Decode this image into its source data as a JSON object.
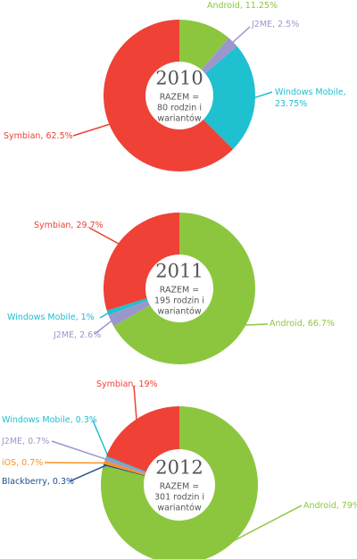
{
  "chart_data": [
    {
      "type": "pie",
      "title": "2010",
      "center_text": [
        "RAZEM =",
        "80 rodzin i",
        "wariantów"
      ],
      "values": [
        11.25,
        2.5,
        23.75,
        62.5
      ],
      "value_labels": [
        "Android, 11.25%",
        "J2ME, 2.5%",
        "Windows Mobile, 23.75%",
        "Symbian, 62.5%"
      ],
      "colors": [
        "#8cc63f",
        "#9a97cc",
        "#1fc0d0",
        "#ef4136"
      ]
    },
    {
      "type": "pie",
      "title": "2011",
      "center_text": [
        "RAZEM =",
        "195 rodzin i",
        "wariantów"
      ],
      "values": [
        66.7,
        2.6,
        1,
        29.7
      ],
      "value_labels": [
        "Android, 66.7%",
        "J2ME, 2.6%",
        "Windows Mobile, 1%",
        "Symbian, 29.7%"
      ],
      "colors": [
        "#8cc63f",
        "#9a97cc",
        "#1fc0d0",
        "#ef4136"
      ]
    },
    {
      "type": "pie",
      "title": "2012",
      "center_text": [
        "RAZEM =",
        "301 rodzin i",
        "wariantów"
      ],
      "values": [
        79,
        0.3,
        0.7,
        0.7,
        0.3,
        19
      ],
      "value_labels": [
        "Android, 79%",
        "Blackberry, 0.3%",
        "iOS, 0.7%",
        "J2ME, 0.7%",
        "Windows Mobile, 0.3%",
        "Symbian, 19%"
      ],
      "colors": [
        "#8cc63f",
        "#1d4f8c",
        "#f7941d",
        "#9a97cc",
        "#1fc0d0",
        "#ef4136"
      ]
    }
  ]
}
